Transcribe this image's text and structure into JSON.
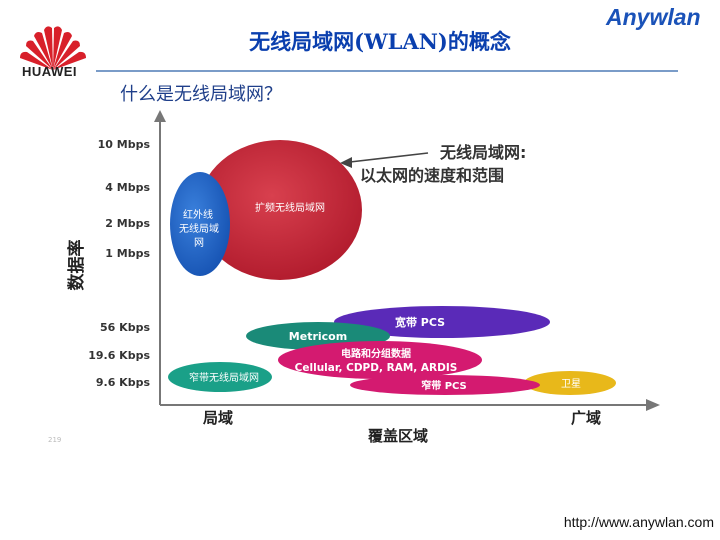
{
  "header": {
    "logo_text": "HUAWEI",
    "title": "无线局域网(WLAN)的概念",
    "brand": "Anywlan",
    "subtitle": "什么是无线局域网？"
  },
  "diagram": {
    "y_axis_label": "数据率",
    "x_axis_label": "覆盖区域",
    "x_ticks": [
      "局域",
      "广域"
    ],
    "y_ticks": [
      "10 Mbps",
      "4 Mbps",
      "2 Mbps",
      "1 Mbps",
      "56 Kbps",
      "19.6 Kbps",
      "9.6 Kbps"
    ],
    "callout_line1": "无线局域网:",
    "callout_line2": "以太网的速度和范围",
    "regions": {
      "spread_wlan": "扩频无线局域网",
      "ir_line1": "红外线",
      "ir_line2": "无线局域",
      "ir_line3": "网",
      "broadband_pcs": "宽带 PCS",
      "metricom": "Metricom",
      "circuit_line1": "电路和分组数据",
      "circuit_line2": "Cellular, CDPD, RAM, ARDIS",
      "narrowband_wlan": "窄带无线局域网",
      "narrowband_pcs": "窄带 PCS",
      "satellite": "卫星"
    },
    "colors": {
      "spread": "#c8283a",
      "ir": "#2266c8",
      "broadband": "#5a2ab8",
      "metricom": "#1a8a78",
      "circuit": "#d41a70",
      "narrow_wlan": "#1aa088",
      "narrow_pcs": "#d41a70",
      "satellite": "#e8b81a"
    }
  },
  "footer": {
    "slide_number": "219",
    "url": "http://www.anywlan.com"
  }
}
